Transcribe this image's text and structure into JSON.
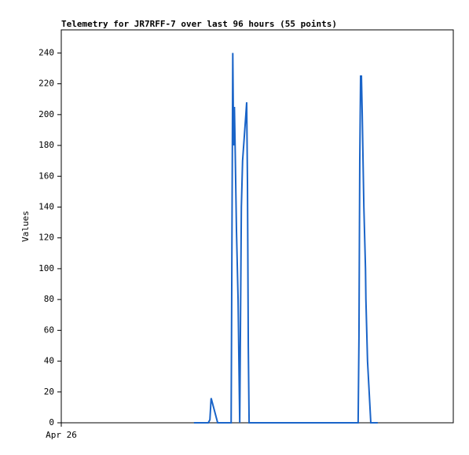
{
  "chart_data": {
    "type": "line",
    "title": "Telemetry for JR7RFF-7 over last 96 hours (55 points)",
    "ylabel": "Values",
    "x": [
      32.5,
      34.0,
      36.0,
      36.4,
      36.7,
      37.1,
      37.7,
      38.3,
      39.8,
      41.6,
      41.7,
      42.0,
      42.2,
      42.4,
      42.6,
      42.9,
      43.3,
      43.5,
      43.7,
      44.1,
      44.4,
      44.8,
      45.2,
      45.4,
      45.6,
      45.8,
      46.0,
      48.5,
      51.4,
      54.3,
      57.1,
      60.0,
      62.9,
      65.8,
      68.7,
      70.6,
      72.7,
      72.9,
      73.1,
      73.3,
      73.5,
      73.7,
      74.1,
      74.5,
      74.6,
      75.0,
      75.4,
      75.8,
      76.2,
      76.6,
      76.8,
      77.0,
      77.1,
      77.3,
      77.5
    ],
    "series": [
      {
        "color": "#1a64c8",
        "values": [
          0,
          0,
          0,
          2,
          16,
          12,
          6,
          0,
          0,
          0,
          60,
          240,
          180,
          205,
          175,
          125,
          80,
          40,
          0,
          140,
          170,
          185,
          200,
          208,
          155,
          50,
          0,
          0,
          0,
          0,
          0,
          0,
          0,
          0,
          0,
          0,
          0,
          55,
          170,
          225,
          225,
          200,
          140,
          100,
          80,
          40,
          20,
          0,
          0,
          0,
          0,
          0,
          0,
          0,
          0
        ]
      }
    ],
    "xlim": [
      0,
      96
    ],
    "xticks": [
      {
        "value": 0,
        "label": "Apr 26"
      }
    ],
    "ylim": [
      0,
      255
    ],
    "yticks": [
      0,
      20,
      40,
      60,
      80,
      100,
      120,
      140,
      160,
      180,
      200,
      220,
      240
    ]
  }
}
